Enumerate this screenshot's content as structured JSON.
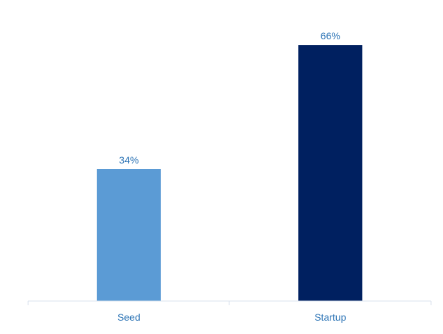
{
  "chart_data": {
    "type": "bar",
    "categories": [
      "Seed",
      "Startup"
    ],
    "values": [
      34,
      66
    ],
    "value_labels": [
      "34%",
      "66%"
    ],
    "title": "",
    "xlabel": "",
    "ylabel": "",
    "ylim": [
      0,
      70
    ],
    "grid": false,
    "legend": "none",
    "bar_colors": [
      "#5b9bd5",
      "#002060"
    ],
    "label_color": "#2e75b6",
    "axis_color": "#d9e2ec"
  }
}
